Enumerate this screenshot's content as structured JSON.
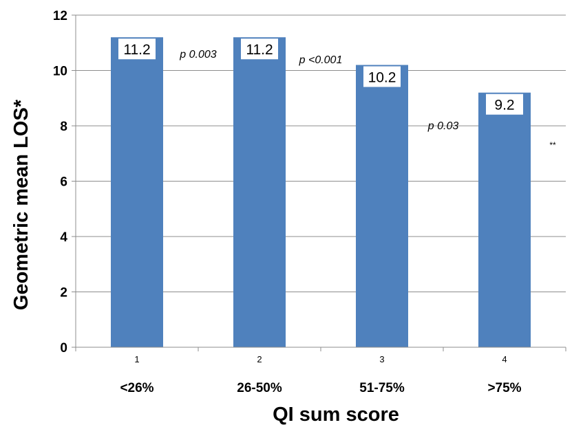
{
  "chart_data": {
    "type": "bar",
    "categories": [
      "1",
      "2",
      "3",
      "4"
    ],
    "category_labels": [
      "<26%",
      "26-50%",
      "51-75%",
      ">75%"
    ],
    "values": [
      11.2,
      11.2,
      10.2,
      9.2
    ],
    "data_labels": [
      "11.2",
      "11.2",
      "10.2",
      "9.2"
    ],
    "xlabel": "QI sum score",
    "ylabel": "Geometric mean LOS*",
    "ylim": [
      0,
      12
    ],
    "yticks": [
      0,
      2,
      4,
      6,
      8,
      10,
      12
    ],
    "grid": true,
    "bar_color": "#4f81bd",
    "annotations": [
      {
        "text": "p 0.003",
        "between": [
          1,
          2
        ]
      },
      {
        "text": "p <0.001",
        "between": [
          2,
          3
        ]
      },
      {
        "text": "p 0.03",
        "between": [
          3,
          4
        ]
      },
      {
        "text": "**",
        "after": 4
      }
    ]
  }
}
